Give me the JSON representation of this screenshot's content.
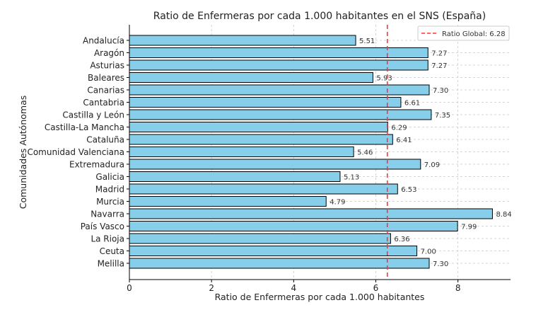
{
  "chart_data": {
    "type": "bar",
    "orientation": "horizontal",
    "title": "Ratio de Enfermeras por cada 1.000 habitantes en el SNS (España)",
    "xlabel": "Ratio de Enfermeras por cada 1.000 habitantes",
    "ylabel": "Comunidades Autónomas",
    "xlim": [
      0,
      9.28
    ],
    "xticks": [
      "0",
      "2",
      "4",
      "6",
      "8"
    ],
    "grid": true,
    "categories": [
      "Andalucía",
      "Aragón",
      "Asturias",
      "Baleares",
      "Canarias",
      "Cantabria",
      "Castilla y León",
      "Castilla-La Mancha",
      "Cataluña",
      "Comunidad Valenciana",
      "Extremadura",
      "Galicia",
      "Madrid",
      "Murcia",
      "Navarra",
      "País Vasco",
      "La Rioja",
      "Ceuta",
      "Melilla"
    ],
    "values": [
      5.51,
      7.27,
      7.27,
      5.93,
      7.3,
      6.61,
      7.35,
      6.29,
      6.41,
      5.46,
      7.09,
      5.13,
      6.53,
      4.79,
      8.84,
      7.99,
      6.36,
      7.0,
      7.3
    ],
    "value_labels": [
      "5.51",
      "7.27",
      "7.27",
      "5.93",
      "7.30",
      "6.61",
      "7.35",
      "6.29",
      "6.41",
      "5.46",
      "7.09",
      "5.13",
      "6.53",
      "4.79",
      "8.84",
      "7.99",
      "6.36",
      "7.00",
      "7.30"
    ],
    "reference_line": {
      "value": 6.28,
      "label": "Ratio Global: 6.28",
      "color": "#ff3333"
    },
    "legend_position": "top-right",
    "bar_color": "#87ceeb",
    "bar_edge_color": "#000000"
  }
}
